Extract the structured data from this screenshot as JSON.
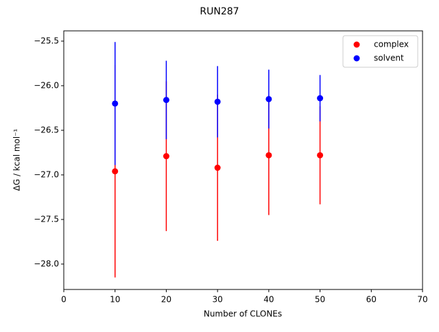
{
  "chart_data": {
    "type": "scatter",
    "title": "RUN287",
    "xlabel": "Number of CLONEs",
    "ylabel": "ΔG / kcal mol⁻¹",
    "x": [
      10,
      20,
      30,
      40,
      50
    ],
    "series": [
      {
        "name": "complex",
        "color": "#ff0000",
        "values": [
          -26.96,
          -26.79,
          -26.92,
          -26.78,
          -26.78
        ],
        "errors": [
          1.19,
          0.84,
          0.82,
          0.67,
          0.55
        ]
      },
      {
        "name": "solvent",
        "color": "#0000ff",
        "values": [
          -26.2,
          -26.16,
          -26.18,
          -26.15,
          -26.14
        ],
        "errors": [
          0.69,
          0.44,
          0.4,
          0.33,
          0.26
        ]
      }
    ],
    "xlim": [
      0,
      70
    ],
    "xticks": [
      0,
      10,
      20,
      30,
      40,
      50,
      60,
      70
    ],
    "ylim": [
      -28.285,
      -25.385
    ],
    "yticks": [
      {
        "value": -28.0,
        "label": "−28.0"
      },
      {
        "value": -27.5,
        "label": "−27.5"
      },
      {
        "value": -27.0,
        "label": "−27.0"
      },
      {
        "value": -26.5,
        "label": "−26.5"
      },
      {
        "value": -26.0,
        "label": "−26.0"
      },
      {
        "value": -25.5,
        "label": "−25.5"
      }
    ],
    "legend": "upper right"
  }
}
